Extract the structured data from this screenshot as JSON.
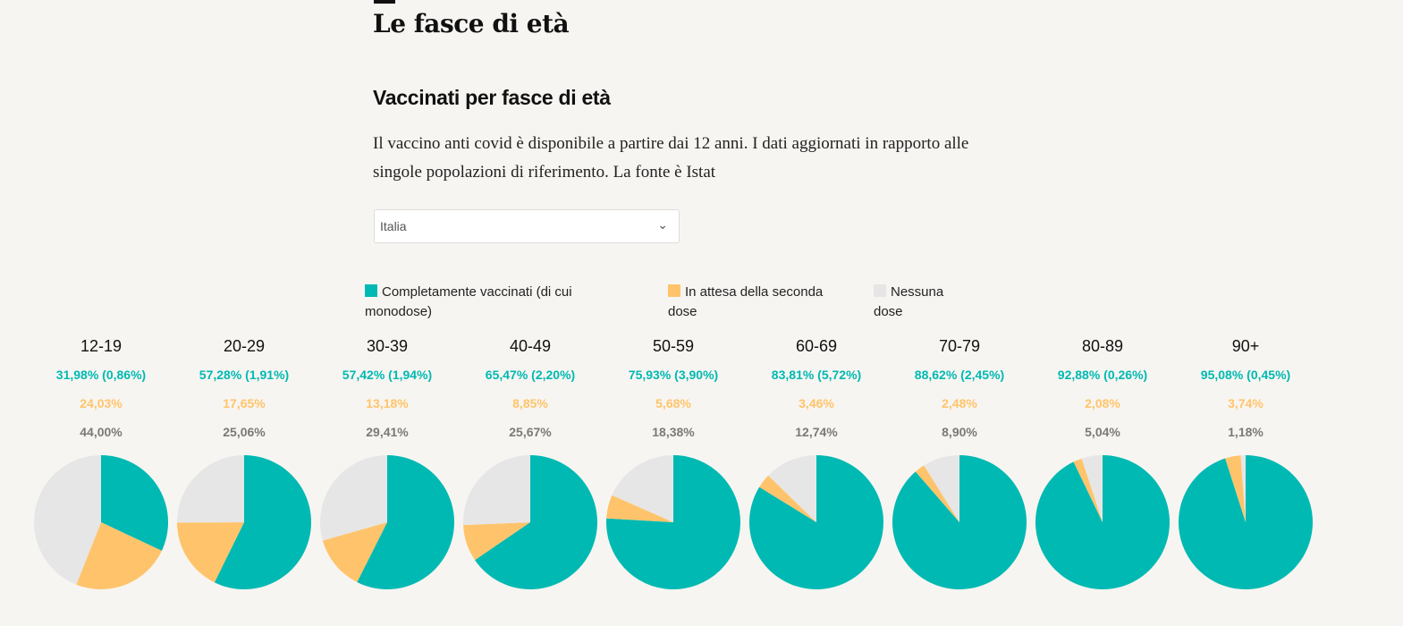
{
  "header": {
    "title": "Le fasce di età"
  },
  "section": {
    "title": "Vaccinati per fasce di età",
    "description": "Il vaccino anti covid è disponibile a partire dai 12 anni. I dati aggiornati in rapporto alle singole popolazioni di riferimento. La fonte è  Istat"
  },
  "filter": {
    "selected": "Italia"
  },
  "chart_data": {
    "type": "pie",
    "legend": [
      "Completamente vaccinati (di cui monodose)",
      "In attesa della seconda dose",
      "Nessuna dose"
    ],
    "colors": [
      "#00b9b3",
      "#ffc46b",
      "#e6e6e6"
    ],
    "groups": [
      {
        "age": "12-19",
        "full": 31.98,
        "mono": 0.86,
        "full_label": "31,98% (0,86%)",
        "wait": 24.03,
        "wait_label": "24,03%",
        "none": 44.0,
        "none_label": "44,00%"
      },
      {
        "age": "20-29",
        "full": 57.28,
        "mono": 1.91,
        "full_label": "57,28% (1,91%)",
        "wait": 17.65,
        "wait_label": "17,65%",
        "none": 25.06,
        "none_label": "25,06%"
      },
      {
        "age": "30-39",
        "full": 57.42,
        "mono": 1.94,
        "full_label": "57,42% (1,94%)",
        "wait": 13.18,
        "wait_label": "13,18%",
        "none": 29.41,
        "none_label": "29,41%"
      },
      {
        "age": "40-49",
        "full": 65.47,
        "mono": 2.2,
        "full_label": "65,47% (2,20%)",
        "wait": 8.85,
        "wait_label": "8,85%",
        "none": 25.67,
        "none_label": "25,67%"
      },
      {
        "age": "50-59",
        "full": 75.93,
        "mono": 3.9,
        "full_label": "75,93% (3,90%)",
        "wait": 5.68,
        "wait_label": "5,68%",
        "none": 18.38,
        "none_label": "18,38%"
      },
      {
        "age": "60-69",
        "full": 83.81,
        "mono": 5.72,
        "full_label": "83,81% (5,72%)",
        "wait": 3.46,
        "wait_label": "3,46%",
        "none": 12.74,
        "none_label": "12,74%"
      },
      {
        "age": "70-79",
        "full": 88.62,
        "mono": 2.45,
        "full_label": "88,62% (2,45%)",
        "wait": 2.48,
        "wait_label": "2,48%",
        "none": 8.9,
        "none_label": "8,90%"
      },
      {
        "age": "80-89",
        "full": 92.88,
        "mono": 0.26,
        "full_label": "92,88% (0,26%)",
        "wait": 2.08,
        "wait_label": "2,08%",
        "none": 5.04,
        "none_label": "5,04%"
      },
      {
        "age": "90+",
        "full": 95.08,
        "mono": 0.45,
        "full_label": "95,08% (0,45%)",
        "wait": 3.74,
        "wait_label": "3,74%",
        "none": 1.18,
        "none_label": "1,18%"
      }
    ]
  }
}
